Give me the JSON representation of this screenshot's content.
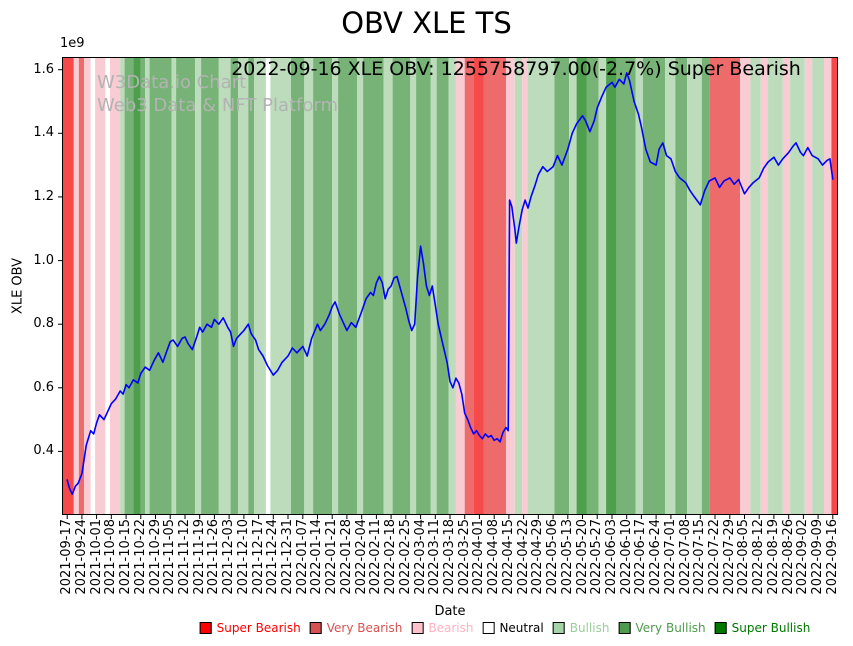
{
  "watermark": {
    "line1": "W3Data.io Chart",
    "line2": "Web3 Data & NFT Platform"
  },
  "legend": {
    "items": [
      {
        "label": "Super Bearish",
        "color": "#ff0000",
        "text_color": "#ff0000"
      },
      {
        "label": "Very Bearish",
        "color": "#d65151",
        "text_color": "#d65151"
      },
      {
        "label": "Bearish",
        "color": "#ffc0cb",
        "text_color": "#ffb3c0"
      },
      {
        "label": "Neutral",
        "color": "#ffffff",
        "text_color": "#000000"
      },
      {
        "label": "Bullish",
        "color": "#a6d4a6",
        "text_color": "#9ccc9c"
      },
      {
        "label": "Very Bullish",
        "color": "#4e9a4e",
        "text_color": "#4e9a4e"
      },
      {
        "label": "Super Bullish",
        "color": "#007800",
        "text_color": "#007800"
      }
    ]
  },
  "chart_data": {
    "type": "line",
    "title": "OBV XLE TS",
    "subtitle": "2022-09-16 XLE OBV: 1255758797.00(-2.7%) Super Bearish",
    "xlabel": "Date",
    "ylabel": "XLE OBV",
    "y_offset_label": "1e9",
    "y_unit": 1000000000,
    "last_value": 1255758797.0,
    "last_change_pct": -2.7,
    "last_signal": "Super Bearish",
    "xlim": [
      -0.35,
      52.35
    ],
    "ylim": [
      0.2,
      1.64
    ],
    "yticks": [
      0.4,
      0.6,
      0.8,
      1.0,
      1.2,
      1.4,
      1.6
    ],
    "grid": false,
    "legend_position": "bottom",
    "categories": [
      "2021-09-17",
      "2021-09-24",
      "2021-10-01",
      "2021-10-08",
      "2021-10-15",
      "2021-10-22",
      "2021-10-29",
      "2021-11-05",
      "2021-11-12",
      "2021-11-19",
      "2021-11-26",
      "2021-12-03",
      "2021-12-10",
      "2021-12-17",
      "2021-12-24",
      "2021-12-31",
      "2022-01-07",
      "2022-01-14",
      "2022-01-21",
      "2022-01-28",
      "2022-02-04",
      "2022-02-11",
      "2022-02-18",
      "2022-02-25",
      "2022-03-04",
      "2022-03-11",
      "2022-03-18",
      "2022-03-25",
      "2022-04-01",
      "2022-04-08",
      "2022-04-15",
      "2022-04-22",
      "2022-04-29",
      "2022-05-06",
      "2022-05-13",
      "2022-05-20",
      "2022-05-27",
      "2022-06-03",
      "2022-06-10",
      "2022-06-17",
      "2022-06-24",
      "2022-07-01",
      "2022-07-08",
      "2022-07-15",
      "2022-07-22",
      "2022-07-29",
      "2022-08-05",
      "2022-08-12",
      "2022-08-19",
      "2022-08-26",
      "2022-09-02",
      "2022-09-09",
      "2022-09-16"
    ],
    "series": [
      {
        "name": "XLE OBV",
        "color": "#0000ff",
        "x_unit": "weeks_from_2021-09-17",
        "y_unit_multiplier": "1e9",
        "points": [
          [
            0,
            0.31
          ],
          [
            0.15,
            0.285
          ],
          [
            0.35,
            0.265
          ],
          [
            0.55,
            0.29
          ],
          [
            0.75,
            0.3
          ],
          [
            1,
            0.33
          ],
          [
            1.3,
            0.42
          ],
          [
            1.6,
            0.465
          ],
          [
            1.8,
            0.455
          ],
          [
            2,
            0.49
          ],
          [
            2.2,
            0.515
          ],
          [
            2.5,
            0.5
          ],
          [
            2.8,
            0.53
          ],
          [
            3,
            0.55
          ],
          [
            3.3,
            0.565
          ],
          [
            3.6,
            0.59
          ],
          [
            3.8,
            0.58
          ],
          [
            4,
            0.61
          ],
          [
            4.2,
            0.6
          ],
          [
            4.5,
            0.625
          ],
          [
            4.8,
            0.615
          ],
          [
            5,
            0.645
          ],
          [
            5.3,
            0.665
          ],
          [
            5.6,
            0.655
          ],
          [
            5.9,
            0.685
          ],
          [
            6.2,
            0.71
          ],
          [
            6.5,
            0.68
          ],
          [
            6.8,
            0.72
          ],
          [
            7,
            0.745
          ],
          [
            7.2,
            0.75
          ],
          [
            7.5,
            0.73
          ],
          [
            7.8,
            0.755
          ],
          [
            8,
            0.76
          ],
          [
            8.2,
            0.74
          ],
          [
            8.5,
            0.72
          ],
          [
            8.8,
            0.76
          ],
          [
            9,
            0.79
          ],
          [
            9.2,
            0.775
          ],
          [
            9.5,
            0.8
          ],
          [
            9.8,
            0.79
          ],
          [
            10,
            0.815
          ],
          [
            10.3,
            0.8
          ],
          [
            10.6,
            0.82
          ],
          [
            10.9,
            0.79
          ],
          [
            11.1,
            0.775
          ],
          [
            11.3,
            0.73
          ],
          [
            11.5,
            0.755
          ],
          [
            11.8,
            0.77
          ],
          [
            12,
            0.78
          ],
          [
            12.3,
            0.8
          ],
          [
            12.5,
            0.77
          ],
          [
            12.8,
            0.75
          ],
          [
            13,
            0.72
          ],
          [
            13.3,
            0.7
          ],
          [
            13.6,
            0.67
          ],
          [
            14,
            0.64
          ],
          [
            14.3,
            0.655
          ],
          [
            14.6,
            0.68
          ],
          [
            15,
            0.7
          ],
          [
            15.3,
            0.725
          ],
          [
            15.6,
            0.71
          ],
          [
            16,
            0.73
          ],
          [
            16.3,
            0.7
          ],
          [
            16.6,
            0.755
          ],
          [
            17,
            0.8
          ],
          [
            17.2,
            0.78
          ],
          [
            17.5,
            0.8
          ],
          [
            17.8,
            0.83
          ],
          [
            18,
            0.855
          ],
          [
            18.2,
            0.87
          ],
          [
            18.5,
            0.83
          ],
          [
            18.8,
            0.8
          ],
          [
            19,
            0.78
          ],
          [
            19.3,
            0.805
          ],
          [
            19.6,
            0.79
          ],
          [
            20,
            0.84
          ],
          [
            20.3,
            0.88
          ],
          [
            20.6,
            0.9
          ],
          [
            20.8,
            0.89
          ],
          [
            21,
            0.93
          ],
          [
            21.2,
            0.95
          ],
          [
            21.4,
            0.93
          ],
          [
            21.6,
            0.88
          ],
          [
            21.8,
            0.91
          ],
          [
            22,
            0.92
          ],
          [
            22.2,
            0.945
          ],
          [
            22.4,
            0.95
          ],
          [
            22.7,
            0.9
          ],
          [
            23,
            0.85
          ],
          [
            23.2,
            0.81
          ],
          [
            23.4,
            0.78
          ],
          [
            23.6,
            0.8
          ],
          [
            23.8,
            0.95
          ],
          [
            24,
            1.045
          ],
          [
            24.2,
            0.99
          ],
          [
            24.4,
            0.92
          ],
          [
            24.6,
            0.89
          ],
          [
            24.8,
            0.92
          ],
          [
            25,
            0.86
          ],
          [
            25.2,
            0.8
          ],
          [
            25.5,
            0.74
          ],
          [
            25.8,
            0.68
          ],
          [
            26,
            0.62
          ],
          [
            26.2,
            0.6
          ],
          [
            26.4,
            0.63
          ],
          [
            26.6,
            0.615
          ],
          [
            26.8,
            0.58
          ],
          [
            27,
            0.52
          ],
          [
            27.2,
            0.5
          ],
          [
            27.4,
            0.475
          ],
          [
            27.6,
            0.455
          ],
          [
            27.8,
            0.465
          ],
          [
            28,
            0.45
          ],
          [
            28.2,
            0.44
          ],
          [
            28.4,
            0.455
          ],
          [
            28.6,
            0.445
          ],
          [
            28.8,
            0.45
          ],
          [
            29,
            0.435
          ],
          [
            29.2,
            0.44
          ],
          [
            29.4,
            0.43
          ],
          [
            29.6,
            0.46
          ],
          [
            29.8,
            0.475
          ],
          [
            29.95,
            0.465
          ],
          [
            30.05,
            1.19
          ],
          [
            30.2,
            1.17
          ],
          [
            30.4,
            1.1
          ],
          [
            30.5,
            1.055
          ],
          [
            30.7,
            1.11
          ],
          [
            30.9,
            1.16
          ],
          [
            31.1,
            1.19
          ],
          [
            31.3,
            1.165
          ],
          [
            31.5,
            1.2
          ],
          [
            31.8,
            1.24
          ],
          [
            32,
            1.27
          ],
          [
            32.3,
            1.295
          ],
          [
            32.6,
            1.28
          ],
          [
            33,
            1.295
          ],
          [
            33.3,
            1.33
          ],
          [
            33.6,
            1.3
          ],
          [
            34,
            1.35
          ],
          [
            34.3,
            1.4
          ],
          [
            34.6,
            1.43
          ],
          [
            35,
            1.455
          ],
          [
            35.2,
            1.44
          ],
          [
            35.5,
            1.405
          ],
          [
            35.8,
            1.44
          ],
          [
            36,
            1.48
          ],
          [
            36.3,
            1.515
          ],
          [
            36.6,
            1.545
          ],
          [
            37,
            1.56
          ],
          [
            37.2,
            1.545
          ],
          [
            37.5,
            1.57
          ],
          [
            37.8,
            1.555
          ],
          [
            38,
            1.59
          ],
          [
            38.2,
            1.565
          ],
          [
            38.5,
            1.5
          ],
          [
            38.8,
            1.46
          ],
          [
            39,
            1.42
          ],
          [
            39.3,
            1.35
          ],
          [
            39.6,
            1.31
          ],
          [
            40,
            1.3
          ],
          [
            40.2,
            1.35
          ],
          [
            40.45,
            1.37
          ],
          [
            40.7,
            1.33
          ],
          [
            41,
            1.32
          ],
          [
            41.3,
            1.28
          ],
          [
            41.6,
            1.26
          ],
          [
            42,
            1.245
          ],
          [
            42.3,
            1.22
          ],
          [
            42.6,
            1.2
          ],
          [
            43,
            1.175
          ],
          [
            43.3,
            1.22
          ],
          [
            43.6,
            1.25
          ],
          [
            44,
            1.26
          ],
          [
            44.3,
            1.23
          ],
          [
            44.6,
            1.25
          ],
          [
            45,
            1.26
          ],
          [
            45.3,
            1.24
          ],
          [
            45.6,
            1.255
          ],
          [
            46,
            1.21
          ],
          [
            46.3,
            1.23
          ],
          [
            46.6,
            1.245
          ],
          [
            47,
            1.26
          ],
          [
            47.3,
            1.29
          ],
          [
            47.6,
            1.31
          ],
          [
            48,
            1.325
          ],
          [
            48.3,
            1.3
          ],
          [
            48.6,
            1.32
          ],
          [
            49,
            1.34
          ],
          [
            49.3,
            1.36
          ],
          [
            49.5,
            1.37
          ],
          [
            49.8,
            1.34
          ],
          [
            50,
            1.33
          ],
          [
            50.3,
            1.355
          ],
          [
            50.6,
            1.33
          ],
          [
            51,
            1.32
          ],
          [
            51.3,
            1.3
          ],
          [
            51.6,
            1.315
          ],
          [
            51.8,
            1.32
          ],
          [
            52,
            1.256
          ]
        ]
      }
    ],
    "band_colors": {
      "super_bearish": "#f64a4a",
      "very_bearish": "#ee6b6b",
      "bearish": "#f9ccd4",
      "neutral": "#ffffff",
      "bullish": "#bcdcbc",
      "very_bullish": "#77b377",
      "super_bullish": "#4d9e4d"
    },
    "background_bands": [
      [
        -0.35,
        0.45,
        "super_bearish"
      ],
      [
        0.45,
        0.8,
        "bearish"
      ],
      [
        0.8,
        1.15,
        "very_bearish"
      ],
      [
        1.15,
        1.6,
        "bearish"
      ],
      [
        1.6,
        1.9,
        "neutral"
      ],
      [
        1.9,
        2.6,
        "bearish"
      ],
      [
        2.6,
        2.9,
        "neutral"
      ],
      [
        2.9,
        3.6,
        "bearish"
      ],
      [
        3.6,
        3.9,
        "bullish"
      ],
      [
        3.9,
        4.5,
        "very_bullish"
      ],
      [
        4.5,
        5.0,
        "super_bullish"
      ],
      [
        5.0,
        5.3,
        "very_bullish"
      ],
      [
        5.3,
        5.6,
        "bullish"
      ],
      [
        5.6,
        7.1,
        "very_bullish"
      ],
      [
        7.1,
        7.4,
        "bullish"
      ],
      [
        7.4,
        8.7,
        "very_bullish"
      ],
      [
        8.7,
        9.1,
        "bullish"
      ],
      [
        9.1,
        10.3,
        "very_bullish"
      ],
      [
        10.3,
        11.1,
        "bullish"
      ],
      [
        11.1,
        11.6,
        "very_bullish"
      ],
      [
        11.6,
        12.3,
        "bullish"
      ],
      [
        12.3,
        12.7,
        "very_bullish"
      ],
      [
        12.7,
        13.5,
        "bullish"
      ],
      [
        13.5,
        13.8,
        "neutral"
      ],
      [
        13.8,
        15.2,
        "bullish"
      ],
      [
        15.2,
        16.1,
        "very_bullish"
      ],
      [
        16.1,
        16.7,
        "bullish"
      ],
      [
        16.7,
        18.0,
        "very_bullish"
      ],
      [
        18.0,
        18.4,
        "bullish"
      ],
      [
        18.4,
        19.7,
        "very_bullish"
      ],
      [
        19.7,
        20.1,
        "bullish"
      ],
      [
        20.1,
        21.5,
        "very_bullish"
      ],
      [
        21.5,
        22.1,
        "bullish"
      ],
      [
        22.1,
        23.3,
        "very_bullish"
      ],
      [
        23.3,
        23.7,
        "bullish"
      ],
      [
        23.7,
        24.7,
        "very_bullish"
      ],
      [
        24.7,
        25.1,
        "bullish"
      ],
      [
        25.1,
        25.9,
        "very_bullish"
      ],
      [
        25.9,
        26.4,
        "bullish"
      ],
      [
        26.4,
        27.0,
        "bearish"
      ],
      [
        27.0,
        27.6,
        "very_bearish"
      ],
      [
        27.6,
        28.3,
        "super_bearish"
      ],
      [
        28.3,
        29.8,
        "very_bearish"
      ],
      [
        29.8,
        30.4,
        "bearish"
      ],
      [
        30.4,
        30.9,
        "bullish"
      ],
      [
        30.9,
        31.3,
        "bearish"
      ],
      [
        31.3,
        33.1,
        "bullish"
      ],
      [
        33.1,
        34.1,
        "very_bullish"
      ],
      [
        34.1,
        34.6,
        "bullish"
      ],
      [
        34.6,
        35.3,
        "super_bullish"
      ],
      [
        35.3,
        36.1,
        "very_bullish"
      ],
      [
        36.1,
        36.6,
        "bullish"
      ],
      [
        36.6,
        37.3,
        "super_bullish"
      ],
      [
        37.3,
        38.6,
        "very_bullish"
      ],
      [
        38.6,
        39.1,
        "bullish"
      ],
      [
        39.1,
        40.6,
        "very_bullish"
      ],
      [
        40.6,
        41.3,
        "bullish"
      ],
      [
        41.3,
        42.1,
        "very_bullish"
      ],
      [
        42.1,
        43.1,
        "bullish"
      ],
      [
        43.1,
        43.6,
        "very_bullish"
      ],
      [
        43.6,
        45.7,
        "very_bearish"
      ],
      [
        45.7,
        46.4,
        "bearish"
      ],
      [
        46.4,
        47.1,
        "bullish"
      ],
      [
        47.1,
        47.6,
        "bearish"
      ],
      [
        47.6,
        48.6,
        "bullish"
      ],
      [
        48.6,
        49.1,
        "bearish"
      ],
      [
        49.1,
        50.1,
        "bullish"
      ],
      [
        50.1,
        50.6,
        "bearish"
      ],
      [
        50.6,
        51.4,
        "bullish"
      ],
      [
        51.4,
        51.9,
        "bearish"
      ],
      [
        51.9,
        52.35,
        "super_bearish"
      ]
    ]
  }
}
